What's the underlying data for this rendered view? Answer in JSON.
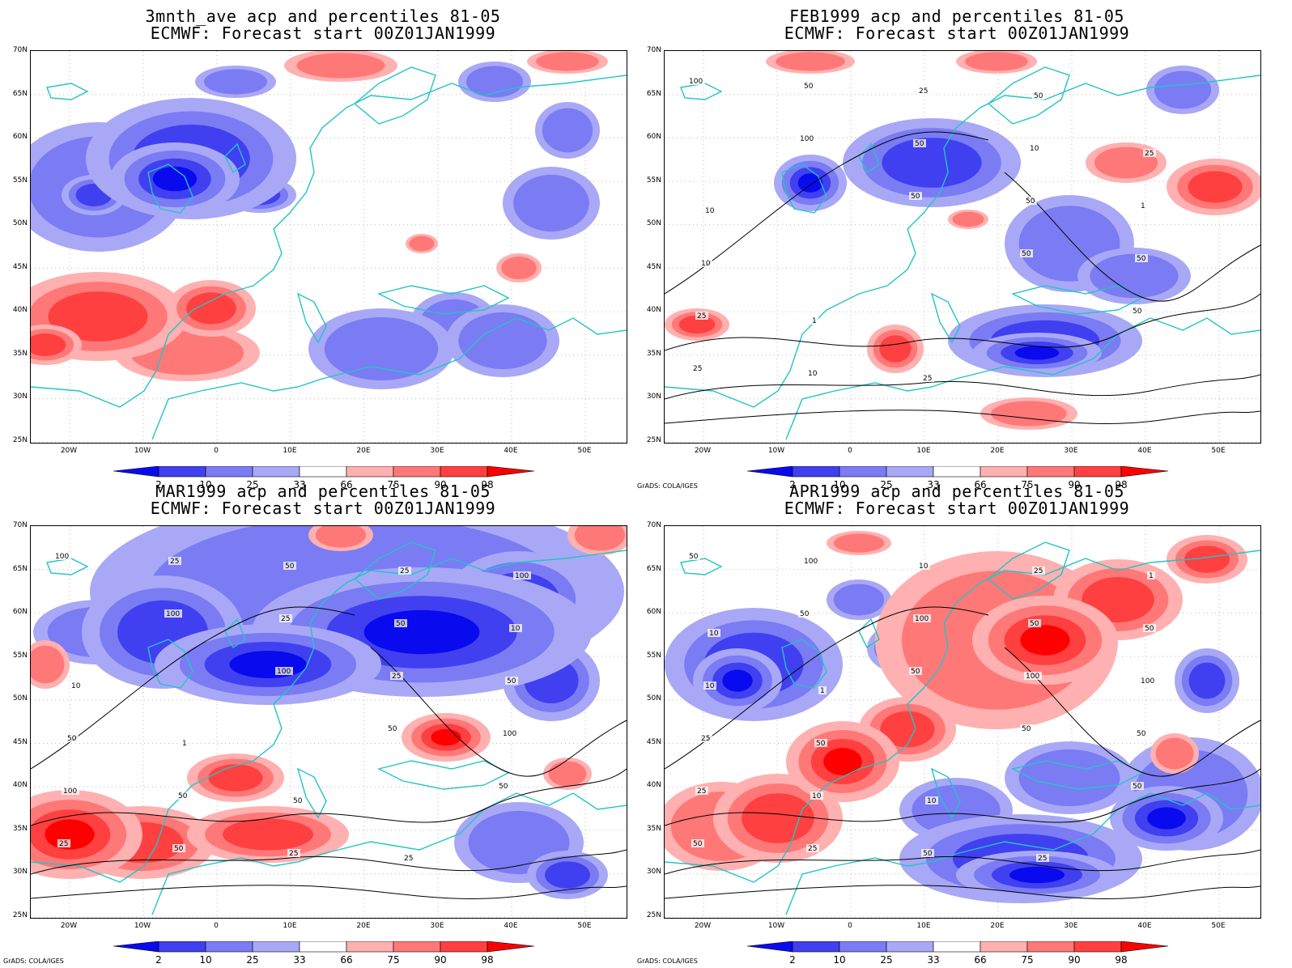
{
  "panels": [
    {
      "title_line1": "3mnth_ave acp and percentiles 81-05",
      "title_line2": "ECMWF: Forecast start 00Z01JAN1999",
      "credit": "",
      "contour_labels": [],
      "warm_blobs": [
        [
          120,
          390,
          110,
          55,
          3
        ],
        [
          260,
          380,
          55,
          35,
          3
        ],
        [
          55,
          425,
          45,
          25,
          3
        ],
        [
          640,
          330,
          28,
          18,
          2
        ],
        [
          230,
          435,
          90,
          35,
          2
        ],
        [
          420,
          80,
          70,
          20,
          2
        ],
        [
          700,
          75,
          50,
          15,
          2
        ],
        [
          520,
          300,
          20,
          12,
          2
        ]
      ],
      "cool_blobs": [
        [
          215,
          220,
          80,
          45,
          4
        ],
        [
          320,
          240,
          45,
          22,
          3
        ],
        [
          115,
          240,
          40,
          25,
          3
        ],
        [
          235,
          195,
          130,
          75,
          3
        ],
        [
          560,
          400,
          55,
          40,
          2
        ],
        [
          620,
          420,
          70,
          45,
          2
        ],
        [
          680,
          250,
          60,
          45,
          2
        ],
        [
          120,
          230,
          110,
          80,
          2
        ],
        [
          470,
          430,
          90,
          50,
          2
        ],
        [
          610,
          100,
          45,
          25,
          2
        ],
        [
          290,
          100,
          50,
          20,
          2
        ],
        [
          700,
          160,
          40,
          35,
          2
        ]
      ]
    },
    {
      "title_line1": "FEB1999 acp and percentiles 81-05",
      "title_line2": "ECMWF: Forecast start 00Z01JAN1999",
      "credit": "GrADS: COLA/IGES",
      "contour_labels": [
        "100",
        "100",
        "50",
        "50",
        "50",
        "25",
        "50",
        "50",
        "50",
        "50",
        "25",
        "10",
        "25",
        "10",
        "1",
        "10",
        "1",
        "25",
        "50",
        "25",
        "10"
      ],
      "warm_blobs": [
        [
          95,
          425,
          80,
          45,
          3
        ],
        [
          50,
          440,
          40,
          25,
          3
        ],
        [
          860,
          400,
          40,
          20,
          3
        ],
        [
          1105,
          430,
          35,
          30,
          3
        ],
        [
          1270,
          510,
          60,
          20,
          2
        ],
        [
          1500,
          230,
          60,
          35,
          3
        ],
        [
          1390,
          200,
          50,
          25,
          2
        ],
        [
          1000,
          75,
          55,
          15,
          2
        ],
        [
          1230,
          75,
          50,
          15,
          2
        ],
        [
          1195,
          270,
          25,
          12,
          2
        ]
      ],
      "cool_blobs": [
        [
          210,
          225,
          80,
          40,
          4
        ],
        [
          1000,
          225,
          45,
          35,
          4
        ],
        [
          120,
          220,
          100,
          70,
          3
        ],
        [
          1280,
          435,
          80,
          25,
          4
        ],
        [
          1290,
          420,
          120,
          45,
          3
        ],
        [
          1150,
          200,
          110,
          55,
          3
        ],
        [
          1320,
          300,
          80,
          60,
          2
        ],
        [
          1460,
          110,
          45,
          30,
          2
        ],
        [
          1400,
          340,
          70,
          35,
          2
        ]
      ]
    },
    {
      "title_line1": "MAR1999 acp and percentiles 81-05",
      "title_line2": "ECMWF: Forecast start 00Z01JAN1999",
      "credit": "GrADS: COLA/IGES",
      "contour_labels": [
        "100",
        "100",
        "100",
        "50",
        "50",
        "25",
        "25",
        "25",
        "25",
        "100",
        "100",
        "50",
        "50",
        "50",
        "50",
        "50",
        "50",
        "25",
        "25",
        "10",
        "10",
        "1",
        "50",
        "25",
        "100"
      ],
      "warm_blobs": [
        [
          85,
          1030,
          90,
          55,
          4
        ],
        [
          175,
          1040,
          90,
          45,
          3
        ],
        [
          330,
          1030,
          100,
          35,
          3
        ],
        [
          550,
          910,
          55,
          30,
          4
        ],
        [
          290,
          960,
          60,
          30,
          3
        ],
        [
          740,
          660,
          40,
          25,
          2
        ],
        [
          420,
          660,
          40,
          20,
          2
        ],
        [
          700,
          955,
          30,
          20,
          2
        ],
        [
          55,
          820,
          30,
          30,
          2
        ]
      ],
      "cool_blobs": [
        [
          520,
          780,
          210,
          80,
          4
        ],
        [
          330,
          820,
          140,
          50,
          4
        ],
        [
          640,
          740,
          90,
          60,
          3
        ],
        [
          680,
          840,
          60,
          50,
          3
        ],
        [
          200,
          780,
          100,
          70,
          3
        ],
        [
          120,
          780,
          80,
          40,
          2
        ],
        [
          440,
          730,
          330,
          120,
          2
        ],
        [
          700,
          1080,
          50,
          30,
          3
        ],
        [
          640,
          1040,
          80,
          50,
          2
        ]
      ]
    },
    {
      "title_line1": "APR1999 acp and percentiles 81-05",
      "title_line2": "ECMWF: Forecast start 00Z01JAN1999",
      "credit": "GrADS: COLA/IGES",
      "contour_labels": [
        "50",
        "50",
        "50",
        "50",
        "50",
        "50",
        "100",
        "100",
        "100",
        "50",
        "25",
        "25",
        "10",
        "50",
        "100",
        "25",
        "10",
        "50",
        "25",
        "50",
        "10",
        "50",
        "10",
        "25",
        "1",
        "10",
        "1"
      ],
      "warm_blobs": [
        [
          1290,
          790,
          90,
          55,
          4
        ],
        [
          1380,
          740,
          80,
          50,
          3
        ],
        [
          1230,
          790,
          150,
          110,
          2
        ],
        [
          1040,
          940,
          70,
          50,
          4
        ],
        [
          960,
          1010,
          80,
          55,
          3
        ],
        [
          890,
          1020,
          80,
          55,
          2
        ],
        [
          1120,
          900,
          60,
          40,
          3
        ],
        [
          1490,
          690,
          50,
          30,
          3
        ],
        [
          1450,
          930,
          30,
          25,
          2
        ],
        [
          1060,
          670,
          40,
          15,
          2
        ]
      ],
      "cool_blobs": [
        [
          910,
          840,
          55,
          40,
          4
        ],
        [
          930,
          820,
          110,
          70,
          3
        ],
        [
          1280,
          1080,
          100,
          30,
          4
        ],
        [
          1260,
          1060,
          150,
          55,
          3
        ],
        [
          1440,
          1010,
          70,
          40,
          4
        ],
        [
          1490,
          840,
          40,
          40,
          3
        ],
        [
          1470,
          980,
          90,
          70,
          2
        ],
        [
          1320,
          960,
          80,
          45,
          2
        ],
        [
          1180,
          1000,
          70,
          40,
          2
        ],
        [
          1060,
          740,
          40,
          25,
          2
        ],
        [
          1110,
          800,
          40,
          30,
          2
        ]
      ]
    }
  ],
  "axes": {
    "y_labels": [
      "70N",
      "65N",
      "60N",
      "55N",
      "50N",
      "45N",
      "40N",
      "35N",
      "30N",
      "25N"
    ],
    "x_labels": [
      "20W",
      "10W",
      "0",
      "10E",
      "20E",
      "30E",
      "40E",
      "50E"
    ]
  },
  "colorbar": {
    "labels": [
      "2",
      "10",
      "25",
      "33",
      "66",
      "75",
      "90",
      "98"
    ],
    "colors": [
      "#0a0aee",
      "#4040f0",
      "#7b7bf4",
      "#a8a8f6",
      "#ffffff",
      "#ffb0b0",
      "#ff7878",
      "#ff4040",
      "#ff0000"
    ]
  },
  "style": {
    "coast_color": "#22c4c8",
    "contour_color": "#000000",
    "warm_levels": [
      "#ffb0b0",
      "#ff7878",
      "#ff4040",
      "#ff0000"
    ],
    "cool_levels": [
      "#a8a8f6",
      "#7b7bf4",
      "#4040f0",
      "#0a0aee"
    ]
  }
}
